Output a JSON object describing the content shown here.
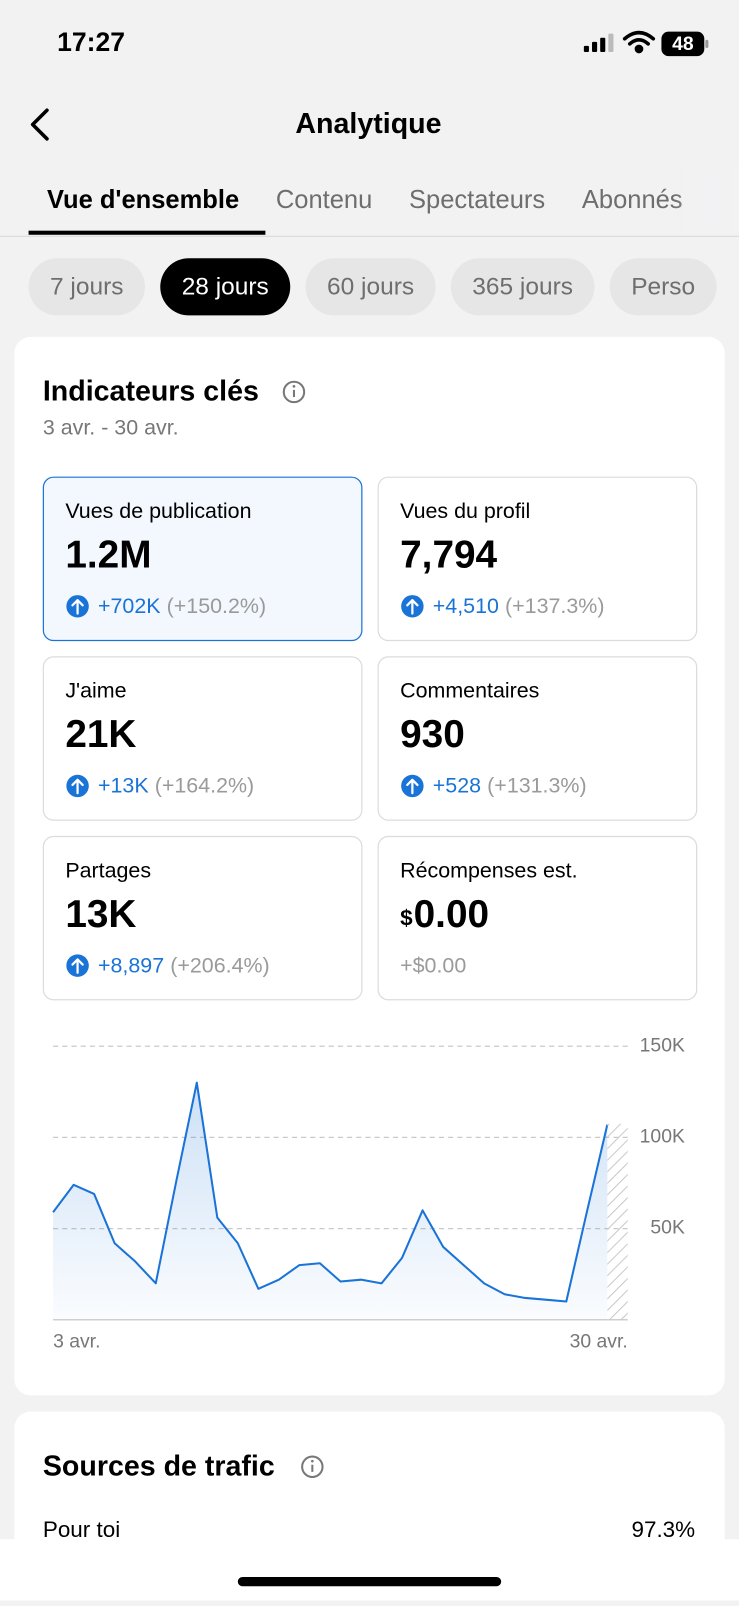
{
  "status_bar": {
    "time": "17:27",
    "battery": "48"
  },
  "header": {
    "title": "Analytique"
  },
  "tabs": [
    "Vue d'ensemble",
    "Contenu",
    "Spectateurs",
    "Abonnés"
  ],
  "periods": [
    "7 jours",
    "28 jours",
    "60 jours",
    "365 jours",
    "Perso"
  ],
  "key_metrics": {
    "title": "Indicateurs clés",
    "date_range": "3 avr. - 30 avr.",
    "cards": [
      {
        "label": "Vues de publication",
        "value": "1.2M",
        "change": "+702K",
        "percent": "(+150.2%)"
      },
      {
        "label": "Vues du profil",
        "value": "7,794",
        "change": "+4,510",
        "percent": "(+137.3%)"
      },
      {
        "label": "J'aime",
        "value": "21K",
        "change": "+13K",
        "percent": "(+164.2%)"
      },
      {
        "label": "Commentaires",
        "value": "930",
        "change": "+528",
        "percent": "(+131.3%)"
      },
      {
        "label": "Partages",
        "value": "13K",
        "change": "+8,897",
        "percent": "(+206.4%)"
      },
      {
        "label": "Récompenses est.",
        "currency": "$",
        "value": "0.00",
        "change": "+$0.00"
      }
    ]
  },
  "chart_data": {
    "type": "line",
    "categories": [
      "3 avr.",
      null,
      null,
      null,
      null,
      null,
      null,
      null,
      null,
      null,
      null,
      null,
      null,
      null,
      null,
      null,
      null,
      null,
      null,
      null,
      null,
      null,
      null,
      null,
      null,
      null,
      null,
      "30 avr."
    ],
    "series": [
      {
        "name": "Vues de publication",
        "color": "#1a73d6",
        "values": [
          59000,
          74000,
          69000,
          42000,
          32000,
          20000,
          76000,
          130000,
          56000,
          42000,
          17000,
          22000,
          30000,
          31000,
          21000,
          22000,
          20000,
          34000,
          60000,
          40000,
          30000,
          20000,
          14000,
          12000,
          11000,
          10000,
          59000,
          107000
        ]
      }
    ],
    "ylim": [
      0,
      150000
    ],
    "yticks": [
      {
        "value": 50000,
        "label": "50K"
      },
      {
        "value": 100000,
        "label": "100K"
      },
      {
        "value": 150000,
        "label": "150K"
      }
    ],
    "grid": true
  },
  "traffic_sources": {
    "title": "Sources de trafic",
    "rows": [
      {
        "label": "Pour toi",
        "value": "97.3%"
      }
    ]
  }
}
